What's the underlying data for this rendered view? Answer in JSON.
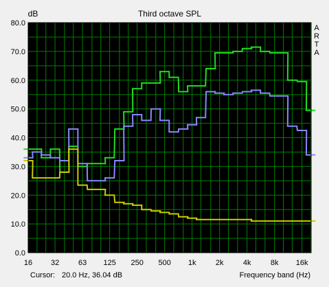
{
  "chart_data": {
    "type": "line",
    "title": "Third octave SPL",
    "ylabel": "dB",
    "xlabel": "Frequency band (Hz)",
    "ylim": [
      0,
      80
    ],
    "yticks": [
      "0.0",
      "10.0",
      "20.0",
      "30.0",
      "40.0",
      "50.0",
      "60.0",
      "70.0",
      "80.0"
    ],
    "xticks": [
      "16",
      "32",
      "63",
      "125",
      "250",
      "500",
      "1k",
      "2k",
      "4k",
      "8k",
      "16k"
    ],
    "grid": true,
    "background": "#000000",
    "grid_color": "#008000",
    "bands": [
      16,
      20,
      25,
      31.5,
      40,
      50,
      63,
      80,
      100,
      125,
      160,
      200,
      250,
      315,
      400,
      500,
      630,
      800,
      1000,
      1250,
      1600,
      2000,
      2500,
      3150,
      4000,
      5000,
      6300,
      8000,
      10000,
      12500,
      16000,
      20000
    ],
    "series": [
      {
        "color": "#22dd22",
        "values": [
          36,
          36,
          33,
          36,
          28,
          37,
          30,
          31,
          31,
          33,
          43,
          49,
          57,
          59,
          59,
          63,
          61,
          56,
          58,
          58,
          64,
          69.5,
          69.5,
          70,
          71,
          71.5,
          70,
          69.5,
          69.5,
          60,
          59.5,
          49.5
        ]
      },
      {
        "color": "#8888ff",
        "values": [
          33,
          35,
          34,
          33,
          32,
          43,
          31,
          25,
          25,
          26,
          32,
          44,
          48,
          46,
          50,
          46,
          42,
          43,
          44.5,
          47,
          56,
          55.5,
          55,
          55.5,
          56,
          56.5,
          55.5,
          54.5,
          54.5,
          44,
          42.5,
          34
        ]
      },
      {
        "color": "#cccc00",
        "values": [
          32,
          26,
          26,
          26,
          28,
          36,
          23.5,
          22,
          22,
          20,
          17.5,
          17,
          16.5,
          15,
          14.5,
          14,
          13.5,
          12.5,
          12,
          11.5,
          11.5,
          11.5,
          11.5,
          11.5,
          11.5,
          11,
          11,
          11,
          11,
          11,
          11,
          11
        ]
      }
    ]
  },
  "side_label": [
    "A",
    "R",
    "T",
    "A"
  ],
  "cursor": {
    "label": "Cursor:",
    "value": "20.0 Hz, 36.04 dB"
  }
}
